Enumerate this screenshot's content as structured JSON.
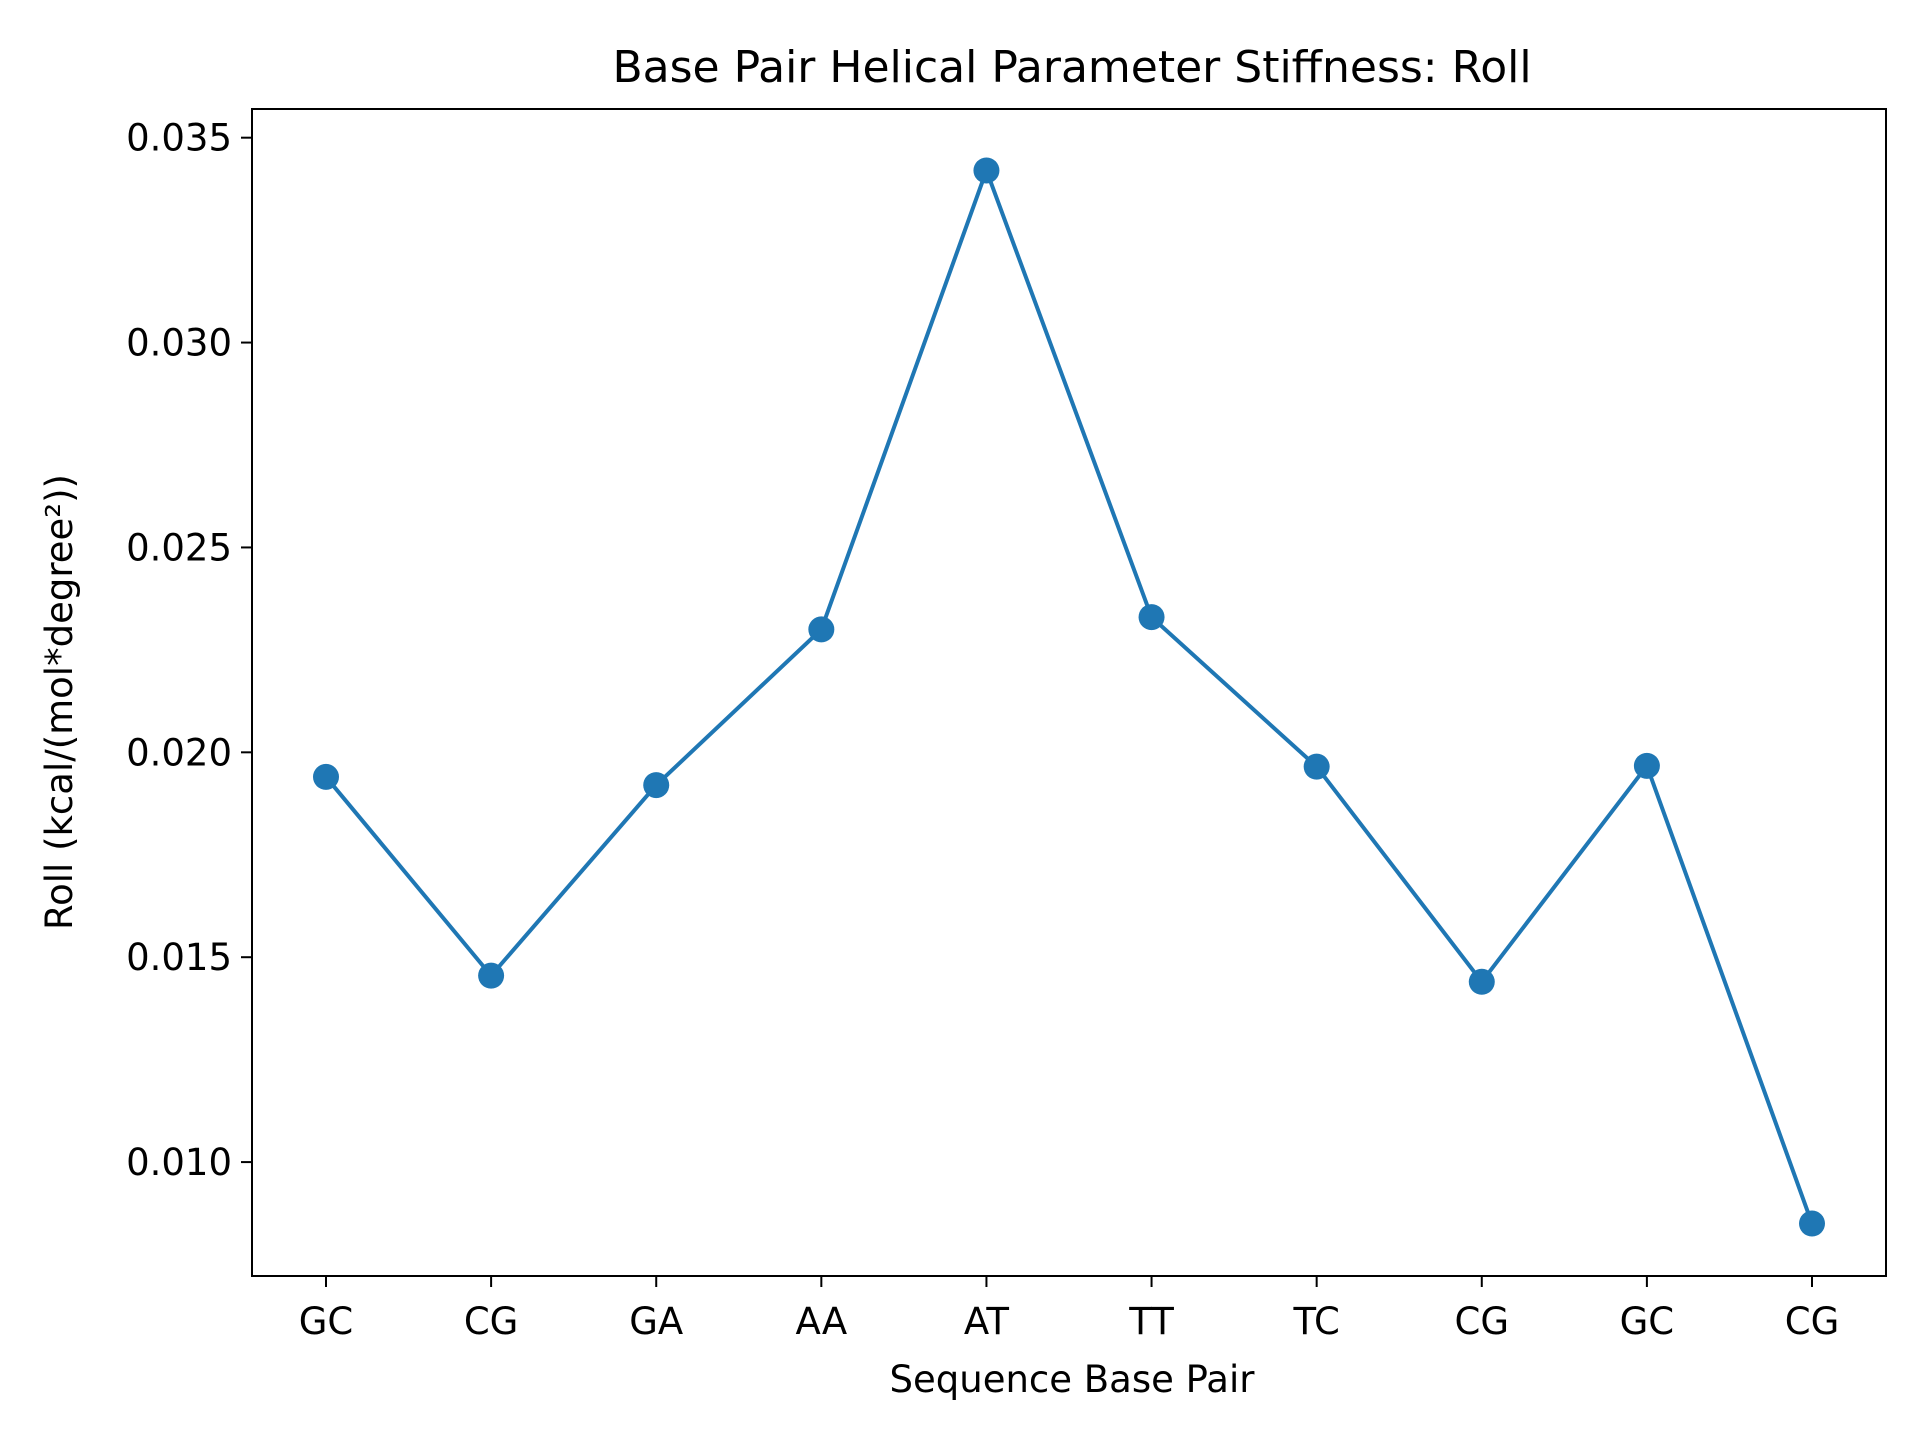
{
  "chart_data": {
    "type": "line",
    "title": "Base Pair Helical Parameter Stiffness: Roll",
    "xlabel": "Sequence Base Pair",
    "ylabel": "Roll (kcal/(mol*degree²))",
    "categories": [
      "GC",
      "CG",
      "GA",
      "AA",
      "AT",
      "TT",
      "TC",
      "CG",
      "GC",
      "CG"
    ],
    "series": [
      {
        "values": [
          0.0194,
          0.01455,
          0.0192,
          0.023,
          0.0342,
          0.0233,
          0.01965,
          0.0144,
          0.01967,
          0.0085
        ],
        "color": "#1f77b4",
        "marker": "circle"
      }
    ],
    "ylim": [
      0.00722,
      0.0357
    ],
    "yticks": [
      0.01,
      0.015,
      0.02,
      0.025,
      0.03,
      0.035
    ],
    "ytick_labels": [
      "0.010",
      "0.015",
      "0.020",
      "0.025",
      "0.030",
      "0.035"
    ],
    "grid": false,
    "legend": "none"
  }
}
